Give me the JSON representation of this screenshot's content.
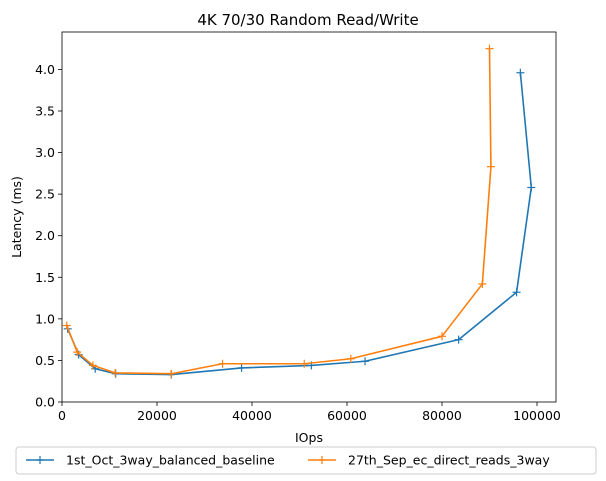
{
  "chart_data": {
    "type": "line",
    "title": "4K 70/30  Random Read/Write",
    "xlabel": "IOps",
    "ylabel": "Latency (ms)",
    "xlim": [
      0,
      104000
    ],
    "ylim": [
      0,
      4.45
    ],
    "xticks": [
      0,
      20000,
      40000,
      60000,
      80000,
      100000
    ],
    "yticks": [
      0.0,
      0.5,
      1.0,
      1.5,
      2.0,
      2.5,
      3.0,
      3.5,
      4.0
    ],
    "xtick_labels": [
      "0",
      "20000",
      "40000",
      "60000",
      "80000",
      "100000"
    ],
    "ytick_labels": [
      "0.0",
      "0.5",
      "1.0",
      "1.5",
      "2.0",
      "2.5",
      "3.0",
      "3.5",
      "4.0"
    ],
    "grid": false,
    "legend_placement": "below-center",
    "series": [
      {
        "name": "1st_Oct_3way_balanced_baseline",
        "color": "#1f77b4",
        "marker": "plus",
        "x": [
          1200,
          3500,
          7000,
          11300,
          23000,
          37800,
          52500,
          63800,
          83500,
          95700,
          98800,
          96500
        ],
        "y": [
          0.88,
          0.57,
          0.4,
          0.34,
          0.33,
          0.41,
          0.44,
          0.49,
          0.75,
          1.32,
          2.58,
          3.96
        ]
      },
      {
        "name": "27th_Sep_ec_direct_reads_3way",
        "color": "#ff7f0e",
        "marker": "plus",
        "x": [
          1000,
          3200,
          6500,
          11200,
          23000,
          33800,
          51000,
          60800,
          80000,
          88500,
          90300,
          90000
        ],
        "y": [
          0.92,
          0.6,
          0.44,
          0.35,
          0.34,
          0.46,
          0.46,
          0.52,
          0.79,
          1.42,
          2.83,
          4.25
        ]
      }
    ]
  }
}
